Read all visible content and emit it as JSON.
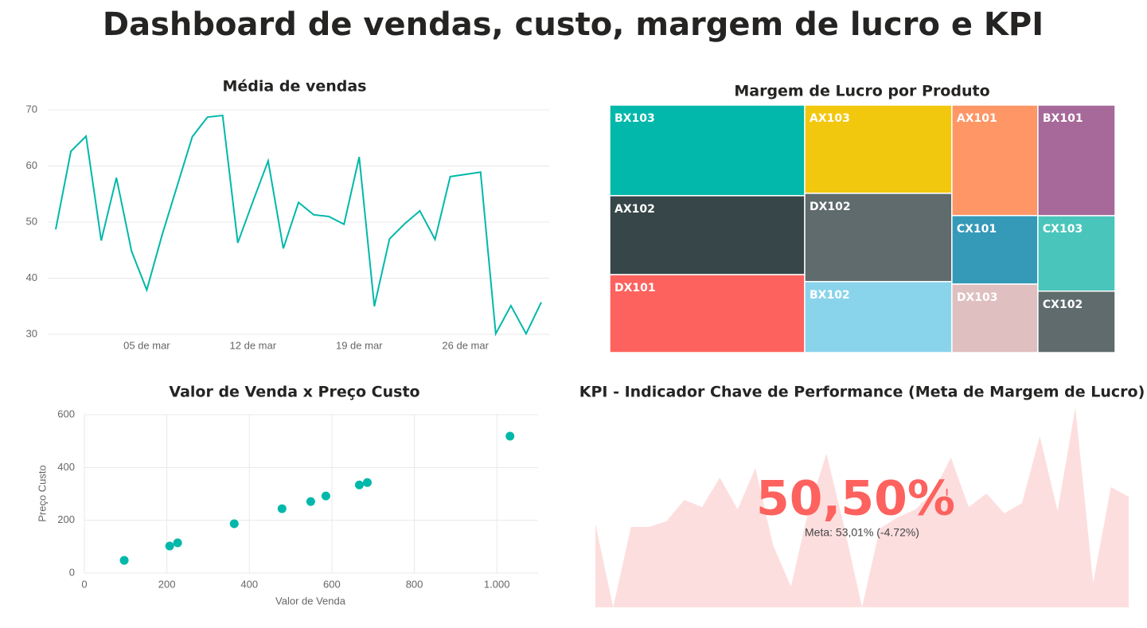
{
  "title": "Dashboard de vendas, custo, margem de lucro e KPI",
  "chart_data": [
    {
      "type": "line",
      "title": "Média de vendas",
      "categories": [
        null,
        null,
        null,
        null,
        null,
        null,
        "05 de mar",
        null,
        null,
        null,
        null,
        null,
        null,
        "12 de mar",
        null,
        null,
        null,
        null,
        null,
        null,
        "19 de mar",
        null,
        null,
        null,
        null,
        null,
        null,
        "26 de mar",
        null,
        null,
        null,
        null,
        null
      ],
      "values": [
        48.7,
        62.6,
        65.3,
        46.7,
        57.9,
        44.8,
        37.9,
        47.6,
        56.4,
        65.2,
        68.7,
        69.0,
        46.3,
        53.7,
        60.9,
        45.3,
        53.5,
        51.3,
        51.0,
        49.6,
        61.6,
        35.0,
        47.0,
        49.7,
        52.0,
        46.9,
        58.1,
        58.5,
        58.9,
        30.1,
        35.1,
        30.1,
        35.7
      ],
      "color": "#01b8aa",
      "ylim": [
        30,
        70
      ],
      "yticks": [
        30,
        40,
        50,
        60,
        70
      ],
      "grid": true
    },
    {
      "type": "treemap",
      "title": "Margem de Lucro por Produto",
      "categories": [
        "BX103",
        "AX102",
        "DX101",
        "AX103",
        "DX102",
        "BX102",
        "AX101",
        "CX101",
        "DX103",
        "BX101",
        "CX103",
        "CX102"
      ],
      "values": [
        27.9,
        24.3,
        24.0,
        20.5,
        20.5,
        16.5,
        15.0,
        9.3,
        9.3,
        13.5,
        9.2,
        7.5
      ],
      "colors": [
        "#01b8aa",
        "#374649",
        "#fd625e",
        "#f2c80f",
        "#5f6b6d",
        "#8ad4eb",
        "#fe9666",
        "#3599b8",
        "#dfbfbf",
        "#a66999",
        "#4ac5bb",
        "#5f6b6d"
      ]
    },
    {
      "type": "scatter",
      "title": "Valor de Venda x Preço Custo",
      "xlabel": "Valor de Venda",
      "ylabel": "Preço Custo",
      "x": [
        96.6,
        206.8,
        226.1,
        363.3,
        479.2,
        548.8,
        585.5,
        666.7,
        686.0,
        1031.9
      ],
      "values": [
        48.2,
        102.5,
        114.6,
        187.0,
        244.0,
        271.0,
        292.0,
        334.0,
        343.0,
        518.6
      ],
      "color": "#01b8aa",
      "xlim": [
        0,
        1100
      ],
      "xticks": [
        0,
        200,
        400,
        600,
        800,
        {
          "value": 1000,
          "label": "1.000"
        }
      ],
      "ylim": [
        0,
        600
      ],
      "yticks": [
        0,
        200,
        400,
        600
      ],
      "grid": true
    },
    {
      "type": "kpi",
      "title": "KPI - Indicador Chave de Performance (Meta de Margem de Lucro)",
      "value": 50.5,
      "value_label": "50,50%",
      "goal_label": "Meta: 53,01% (-4.72%)",
      "trend": [
        10.5,
        0,
        10.1,
        10.1,
        10.8,
        13.5,
        12.6,
        16.3,
        12.3,
        17.5,
        7.8,
        2.6,
        12.3,
        19.3,
        10.1,
        0,
        9.9,
        11.3,
        12.3,
        14.5,
        18.8,
        12.6,
        14.3,
        11.8,
        13.1,
        21.5,
        12.1,
        25.1,
        3.1,
        15.1,
        13.9
      ],
      "color": "#fd625e",
      "trend_color": "#fddede"
    }
  ]
}
